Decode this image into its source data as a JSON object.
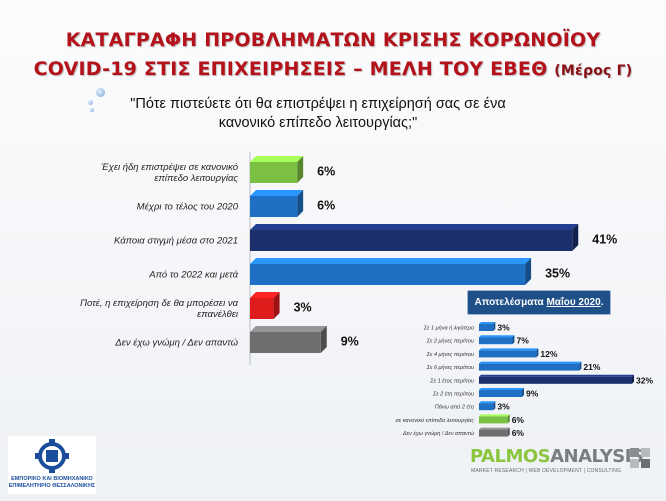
{
  "title": {
    "line1": "ΚΑΤΑΓΡΑΦΗ ΠΡΟΒΛΗΜΑΤΩΝ ΚΡΙΣΗΣ ΚΟΡΩΝΟΪΟΥ",
    "line2": "COVID-19 ΣΤΙΣ ΕΠΙΧΕΙΡΗΣΕΙΣ – ΜΕΛΗ ΤΟΥ ΕΒΕΘ",
    "part": "(Μέρος Γ)"
  },
  "question": "\"Πότε πιστεύετε ότι θα επιστρέψει η επιχείρησή σας σε ένα κανονικό επίπεδο λειτουργίας;\"",
  "chart_data": [
    {
      "type": "bar",
      "orientation": "horizontal",
      "categories": [
        "Έχει ήδη επιστρέψει σε κανονικό επίπεδο λειτουργίας",
        "Μέχρι το τέλος του 2020",
        "Κάποια στιγμή μέσα στο 2021",
        "Από το 2022 και μετά",
        "Ποτέ, η επιχείρηση δε θα μπορέσει να επανέλθει",
        "Δεν έχω γνώμη / Δεν απαντώ"
      ],
      "values": [
        6,
        6,
        41,
        35,
        3,
        9
      ],
      "value_labels": [
        "6%",
        "6%",
        "41%",
        "35%",
        "3%",
        "9%"
      ],
      "colors": [
        "#7cc043",
        "#1f6fc4",
        "#1a2f6b",
        "#1f6fc4",
        "#e01b1b",
        "#6e6e6e"
      ],
      "xlim": [
        0,
        45
      ],
      "grid": false
    },
    {
      "type": "bar",
      "orientation": "horizontal",
      "title": "Αποτελέσματα Μαΐου 2020.",
      "categories": [
        "Σε 1 μήνα ή λιγότερο",
        "Σε 2 μήνες περίπου",
        "Σε 4 μήνες περίπου",
        "Σε 6 μήνες περίπου",
        "Σε 1 έτος περίπου",
        "Σε 2 έτη περίπου",
        "Πάνω από 2 έτη",
        "Είμαστε ήδη σε κανονικό επίπεδο λειτουργίας",
        "Δεν έχω γνώμη / Δεν απαντώ"
      ],
      "values": [
        3,
        7,
        12,
        21,
        32,
        9,
        3,
        6,
        6
      ],
      "value_labels": [
        "3%",
        "7%",
        "12%",
        "21%",
        "32%",
        "9%",
        "3%",
        "6%",
        "6%"
      ],
      "colors": [
        "#1f6fc4",
        "#1f6fc4",
        "#1f6fc4",
        "#1f6fc4",
        "#1a2f6b",
        "#1f6fc4",
        "#1f6fc4",
        "#7cc043",
        "#6e6e6e"
      ],
      "xlim": [
        0,
        33
      ],
      "grid": false
    }
  ],
  "may_box": {
    "prefix": "Αποτελέσματα",
    "month": "Μαΐου 2020",
    "suffix": "."
  },
  "logos": {
    "ebeth_line1": "ΕΜΠΟΡΙΚΟ ΚΑΙ ΒΙΟΜΗΧΑΝΙΚΟ",
    "ebeth_line2": "ΕΠΙΜΕΛΗΤΗΡΙΟ ΘΕΣΣΑΛΟΝΙΚΗΣ",
    "palmos_a": "PALMOS",
    "palmos_b": "ANALYSIS",
    "palmos_tag": "MARKET RESEARCH | WEB DEVELOPMENT | CONSULTING"
  }
}
